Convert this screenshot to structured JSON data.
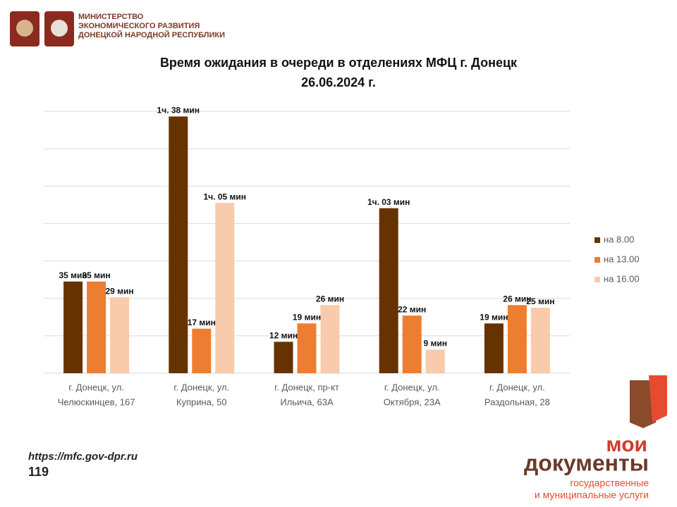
{
  "header": {
    "lines": [
      "МИНИСТЕРСТВО",
      "ЭКОНОМИЧЕСКОГО РАЗВИТИЯ",
      "ДОНЕЦКОЙ НАРОДНОЙ РЕСПУБЛИКИ"
    ]
  },
  "chart_data": {
    "type": "bar",
    "title": "Время ожидания в очереди в отделениях МФЦ г. Донецк",
    "subtitle": "26.06.2024 г.",
    "categories": [
      [
        "г. Донецк, ул.",
        "Челюскинцев, 167"
      ],
      [
        "г. Донецк, ул.",
        "Куприна, 50"
      ],
      [
        "г. Донецк, пр-кт",
        "Ильича, 63А"
      ],
      [
        "г. Донецк, ул.",
        "Октября, 23А"
      ],
      [
        "г. Донецк, ул.",
        "Раздольная, 28"
      ]
    ],
    "series": [
      {
        "name": "на 8.00",
        "color": "#663300",
        "values": [
          35,
          98,
          12,
          63,
          19
        ],
        "value_labels": [
          "35 мин",
          "1ч. 38 мин",
          "12 мин",
          "1ч. 03 мин",
          "19 мин"
        ]
      },
      {
        "name": "на 13.00",
        "color": "#ed7d31",
        "values": [
          35,
          17,
          19,
          22,
          26
        ],
        "value_labels": [
          "35 мин",
          "17 мин",
          "19 мин",
          "22 мин",
          "26 мин"
        ]
      },
      {
        "name": "на 16.00",
        "color": "#f8cbad",
        "values": [
          29,
          65,
          26,
          9,
          25
        ],
        "value_labels": [
          "29 мин",
          "1ч. 05 мин",
          "26 мин",
          "9 мин",
          "25 мин"
        ]
      }
    ],
    "ylim": [
      0,
      100
    ],
    "grid": true,
    "legend": "right"
  },
  "footer": {
    "url": "https://mfc.gov-dpr.ru",
    "number": "119",
    "brand_top": "мои",
    "brand_main": "документы",
    "brand_sub": [
      "государственные",
      "и муниципальные услуги"
    ]
  }
}
